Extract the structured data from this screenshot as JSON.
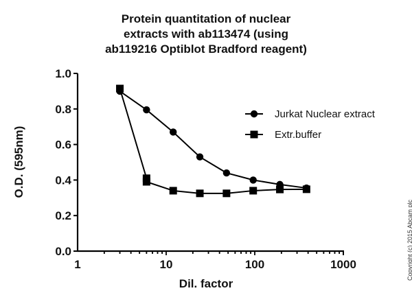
{
  "chart_data": {
    "type": "line",
    "title": "Protein quantitation of nuclear extracts with ab113474 (using ab119216 Optiblot Bradford reagent)",
    "title_lines": [
      "Protein quantitation of nuclear",
      "extracts with ab113474 (using",
      "ab119216 Optiblot Bradford reagent)"
    ],
    "xlabel": "Dil. factor",
    "ylabel": "O.D. (595nm)",
    "xscale": "log",
    "xlim": [
      1,
      1000
    ],
    "ylim": [
      0.0,
      1.0
    ],
    "xticks": [
      "1",
      "10",
      "100",
      "1000"
    ],
    "yticks": [
      "0.0",
      "0.2",
      "0.4",
      "0.6",
      "0.8",
      "1.0"
    ],
    "grid": false,
    "legend_position": "upper right",
    "series": [
      {
        "name": "Jurkat Nuclear extract",
        "marker": "circle",
        "x": [
          3,
          6,
          12,
          24,
          48,
          96,
          192,
          384
        ],
        "values": [
          0.9,
          0.795,
          0.67,
          0.53,
          0.44,
          0.4,
          0.375,
          0.355
        ]
      },
      {
        "name": "Extr.buffer",
        "marker": "square",
        "x": [
          3,
          6,
          6,
          12,
          24,
          48,
          96,
          192,
          384
        ],
        "values": [
          0.915,
          0.41,
          0.39,
          0.34,
          0.325,
          0.325,
          0.34,
          0.347,
          0.348
        ]
      }
    ]
  },
  "copyright": "Copyright (c) 2015 Abcam plc"
}
